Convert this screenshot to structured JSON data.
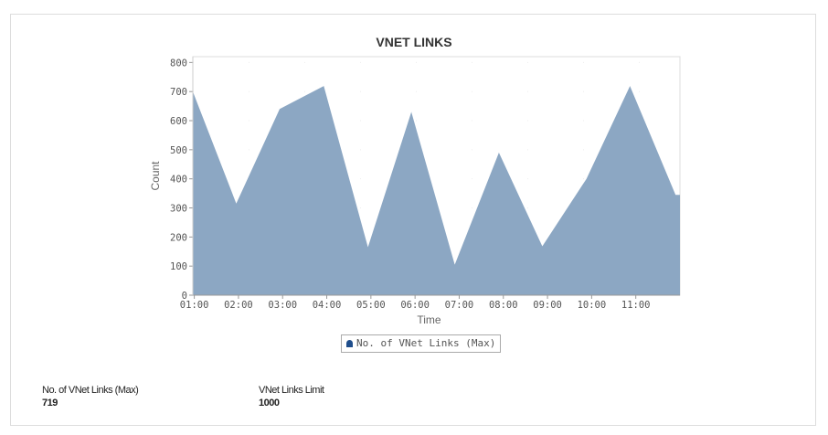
{
  "chart_data": {
    "type": "area",
    "title": "VNET LINKS",
    "xlabel": "Time",
    "ylabel": "Count",
    "x_ticks": [
      "01:00",
      "02:00",
      "03:00",
      "04:00",
      "05:00",
      "06:00",
      "07:00",
      "08:00",
      "09:00",
      "10:00",
      "11:00"
    ],
    "y_ticks": [
      0,
      100,
      200,
      300,
      400,
      500,
      600,
      700,
      800
    ],
    "ylim": [
      0,
      820
    ],
    "xlim": [
      "00:58",
      "12:00"
    ],
    "grid": true,
    "legend": "bottom",
    "series": [
      {
        "name": "No. of VNet Links (Max)",
        "color": "#8ca7c3",
        "x": [
          "00:58",
          "01:57",
          "02:56",
          "03:56",
          "04:56",
          "05:55",
          "06:54",
          "07:54",
          "08:53",
          "09:53",
          "10:52",
          "11:54"
        ],
        "values": [
          700,
          315,
          640,
          719,
          165,
          630,
          105,
          490,
          168,
          400,
          719,
          345
        ]
      }
    ]
  },
  "legend_marker_color": "#1f4e8c",
  "stats": [
    {
      "label": "No. of VNet Links (Max)",
      "value": "719"
    },
    {
      "label": "VNet Links Limit",
      "value": "1000"
    }
  ]
}
